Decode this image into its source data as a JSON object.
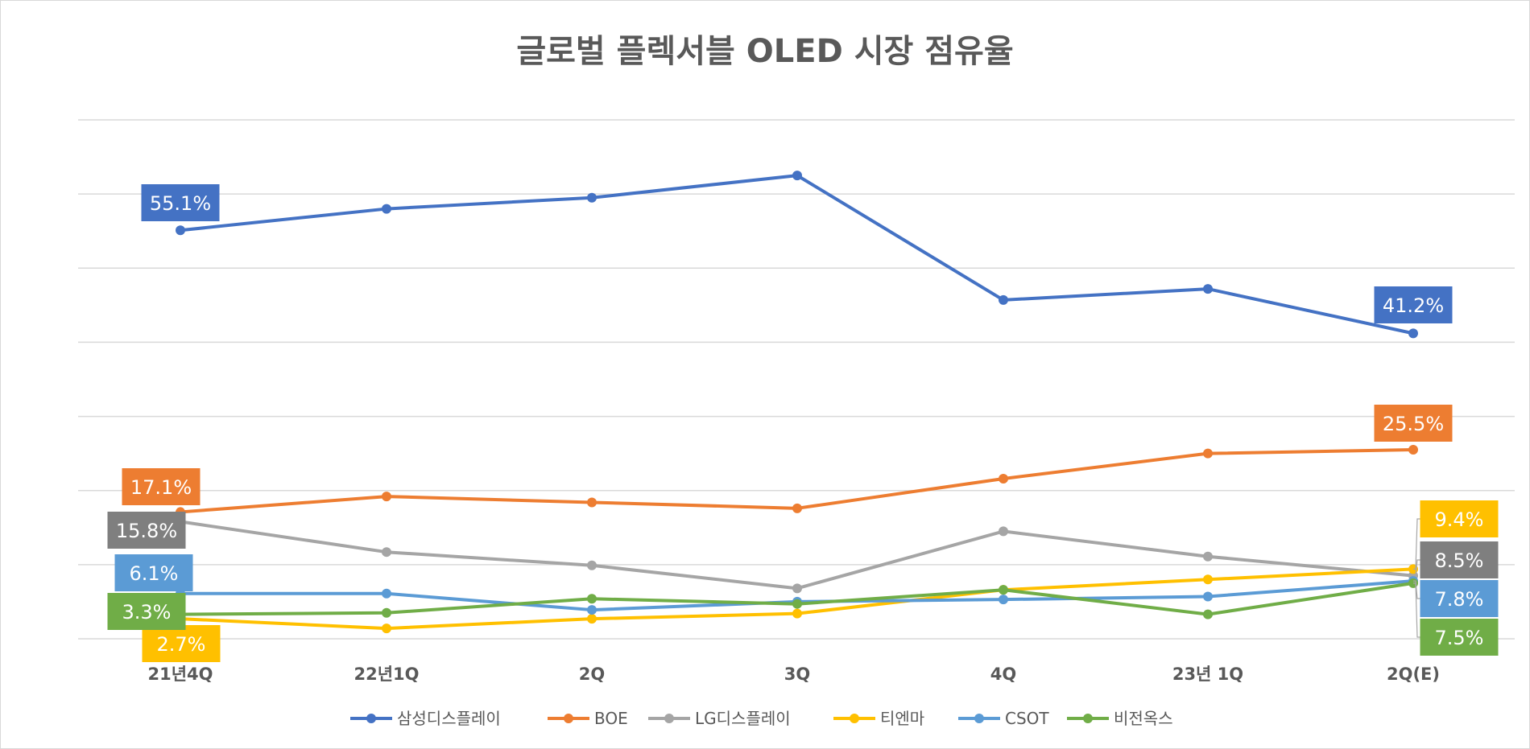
{
  "chart_data": {
    "type": "line",
    "title": "글로벌 플렉서블 OLED 시장 점유율",
    "categories": [
      "21년4Q",
      "22년1Q",
      "2Q",
      "3Q",
      "4Q",
      "23년 1Q",
      "2Q(E)"
    ],
    "ylim": [
      0,
      70
    ],
    "y_gridlines": [
      0,
      10,
      20,
      30,
      40,
      50,
      60,
      70
    ],
    "grid": true,
    "y_axis_labels_shown": false,
    "legend_position": "bottom",
    "unit": "%",
    "series": [
      {
        "name": "삼성디스플레이",
        "color": "#4472C4",
        "values": [
          55.1,
          58.0,
          59.5,
          62.5,
          45.7,
          47.2,
          41.2
        ],
        "labels": {
          "0": "55.1%",
          "6": "41.2%"
        }
      },
      {
        "name": "BOE",
        "color": "#ED7D31",
        "values": [
          17.1,
          19.2,
          18.4,
          17.6,
          21.6,
          25.0,
          25.5
        ],
        "labels": {
          "0": "17.1%",
          "6": "25.5%"
        }
      },
      {
        "name": "LG디스플레이",
        "color": "#A5A5A5",
        "label_color": "#7F7F7F",
        "values": [
          15.8,
          11.7,
          9.9,
          6.8,
          14.5,
          11.1,
          8.5
        ],
        "labels": {
          "0": "15.8%",
          "6": "8.5%"
        }
      },
      {
        "name": "티엔마",
        "color": "#FFC000",
        "values": [
          2.7,
          1.4,
          2.7,
          3.4,
          6.6,
          8.0,
          9.4
        ],
        "labels": {
          "0": "2.7%",
          "6": "9.4%"
        }
      },
      {
        "name": "CSOT",
        "color": "#5B9BD5",
        "values": [
          6.1,
          6.1,
          3.9,
          5.0,
          5.3,
          5.7,
          7.8
        ],
        "labels": {
          "0": "6.1%",
          "6": "7.8%"
        }
      },
      {
        "name": "비전옥스",
        "color": "#70AD47",
        "values": [
          3.3,
          3.5,
          5.4,
          4.7,
          6.6,
          3.3,
          7.5
        ],
        "labels": {
          "0": "3.3%",
          "6": "7.5%"
        }
      }
    ]
  }
}
